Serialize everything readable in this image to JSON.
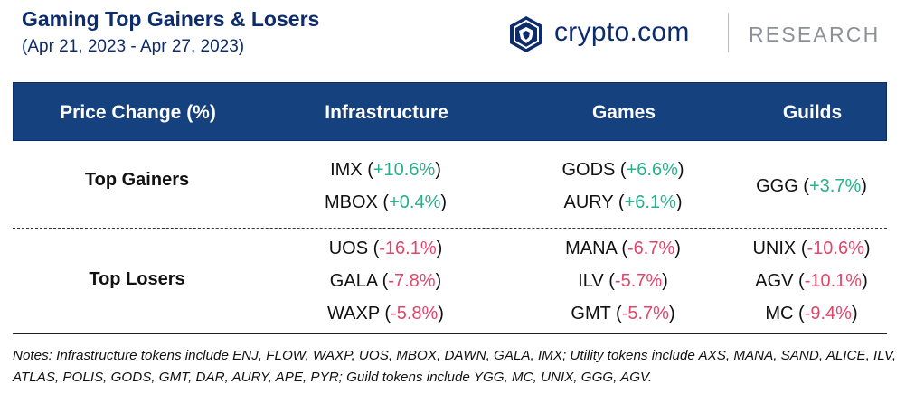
{
  "header": {
    "title": "Gaming Top Gainers & Losers",
    "subtitle": "(Apr 21, 2023 - Apr 27, 2023)"
  },
  "logo": {
    "brand": "crypto.com",
    "section": "RESEARCH",
    "icon": "crypto-com-lion-shield-icon",
    "brand_color": "#0d2c6c"
  },
  "colors": {
    "header_bg": "#16417f",
    "positive": "#27b08b",
    "negative": "#e0466a"
  },
  "table": {
    "headers": [
      "Price Change (%)",
      "Infrastructure",
      "Games",
      "Guilds"
    ],
    "rows": [
      {
        "label": "Top Gainers",
        "infrastructure": [
          {
            "token": "IMX",
            "change": "+10.6%"
          },
          {
            "token": "MBOX",
            "change": "+0.4%"
          }
        ],
        "games": [
          {
            "token": "GODS",
            "change": "+6.6%"
          },
          {
            "token": "AURY",
            "change": "+6.1%"
          }
        ],
        "guilds": [
          {
            "token": "GGG",
            "change": "+3.7%"
          }
        ]
      },
      {
        "label": "Top Losers",
        "infrastructure": [
          {
            "token": "UOS",
            "change": "-16.1%"
          },
          {
            "token": "GALA",
            "change": "-7.8%"
          },
          {
            "token": "WAXP",
            "change": "-5.8%"
          }
        ],
        "games": [
          {
            "token": "MANA",
            "change": "-6.7%"
          },
          {
            "token": "ILV",
            "change": "-5.7%"
          },
          {
            "token": "GMT",
            "change": "-5.7%"
          }
        ],
        "guilds": [
          {
            "token": "UNIX",
            "change": "-10.6%"
          },
          {
            "token": "AGV",
            "change": "-10.1%"
          },
          {
            "token": "MC",
            "change": "-9.4%"
          }
        ]
      }
    ]
  },
  "notes": "Notes: Infrastructure tokens include ENJ, FLOW, WAXP, UOS, MBOX, DAWN, GALA, IMX; Utility tokens include AXS, MANA, SAND, ALICE, ILV, ATLAS, POLIS, GODS, GMT, DAR, AURY, APE, PYR; Guild tokens include YGG, MC, UNIX, GGG, AGV."
}
